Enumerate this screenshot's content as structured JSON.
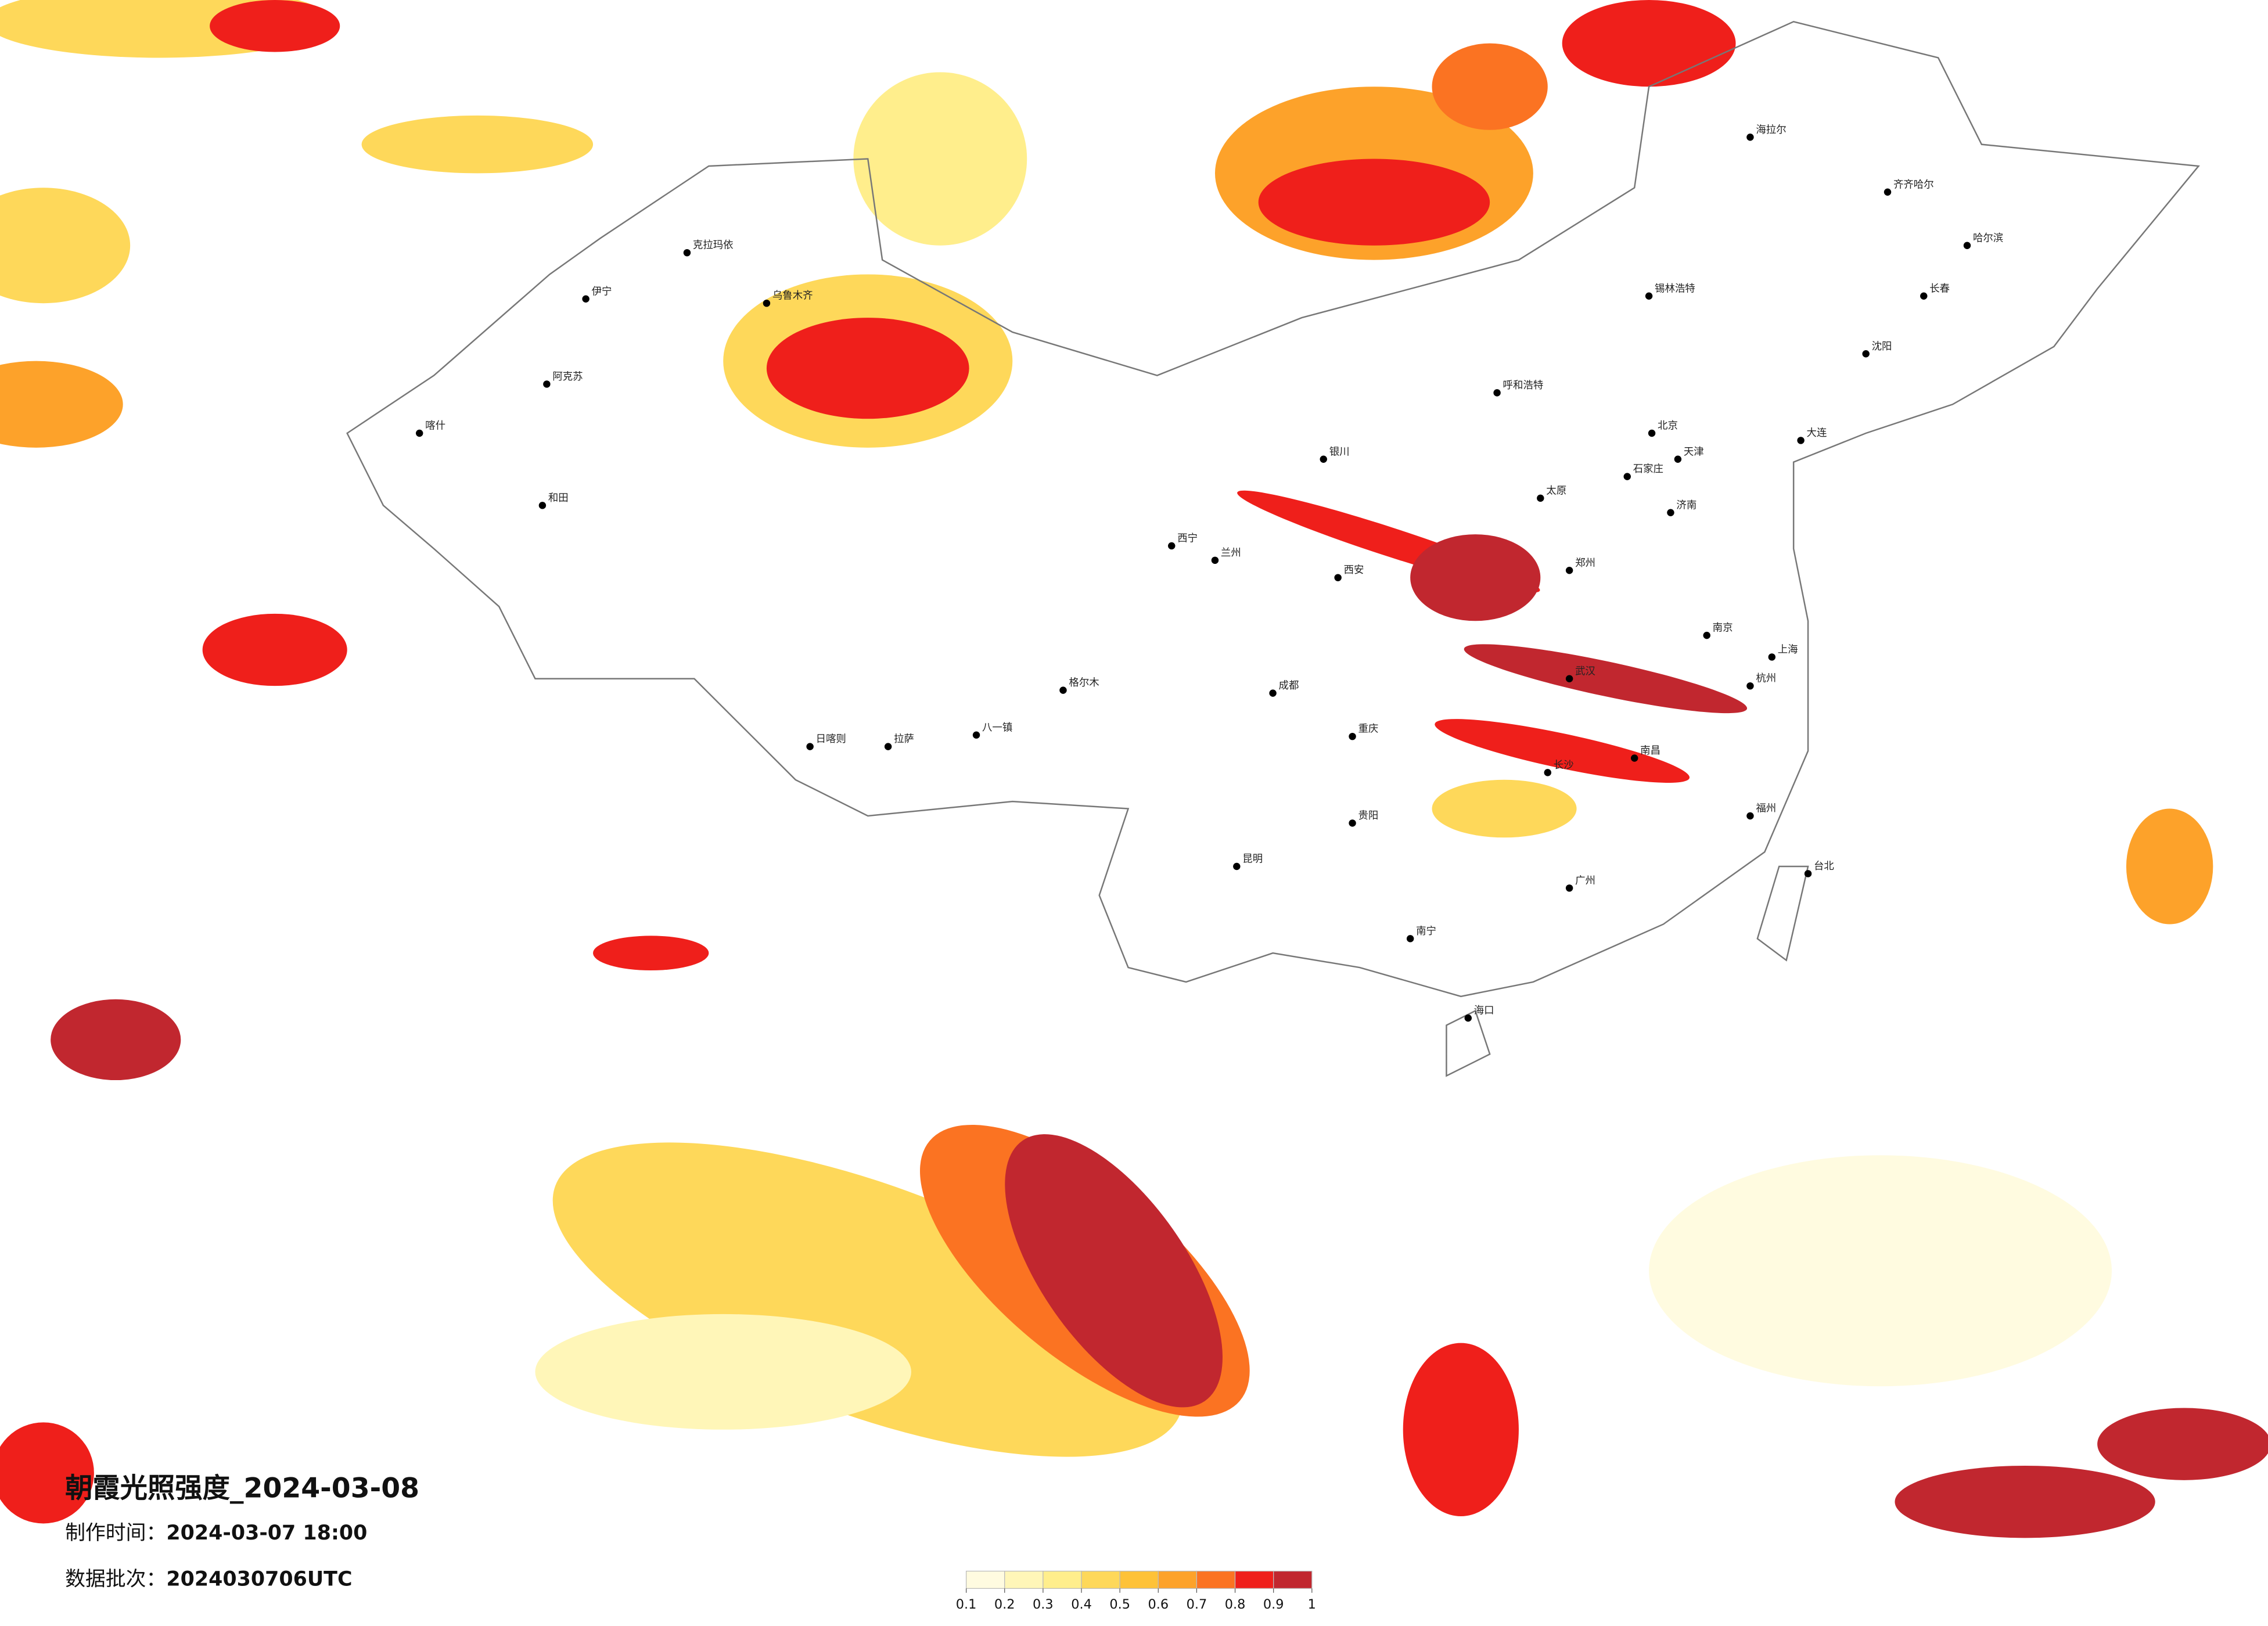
{
  "title": "朝霞光照强度_2024-03-08",
  "production_time": {
    "label": "制作时间：",
    "value": "2024-03-07 18:00"
  },
  "data_batch": {
    "label": "数据批次：",
    "value": "2024030706UTC"
  },
  "legend": {
    "ticks": [
      0.1,
      0.2,
      0.3,
      0.4,
      0.5,
      0.6,
      0.7,
      0.8,
      0.9,
      1
    ],
    "colors": [
      "#fffbe0",
      "#fff6b8",
      "#ffee8c",
      "#fed85a",
      "#fec238",
      "#fda22a",
      "#fb7322",
      "#ef1f1b",
      "#c1272f"
    ]
  },
  "cities": [
    "克拉玛依",
    "乌鲁木齐",
    "伊宁",
    "阿克苏",
    "喀什",
    "和田",
    "格尔木",
    "拉萨",
    "日喀则",
    "八一镇",
    "西宁",
    "兰州",
    "银川",
    "呼和浩特",
    "北京",
    "天津",
    "石家庄",
    "太原",
    "济南",
    "西安",
    "郑州",
    "武汉",
    "南京",
    "上海",
    "杭州",
    "成都",
    "重庆",
    "长沙",
    "南昌",
    "福州",
    "广州",
    "南宁",
    "昆明",
    "贵阳",
    "海口",
    "台北",
    "哈尔滨",
    "长春",
    "沈阳",
    "大连",
    "海拉尔",
    "齐齐哈尔",
    "锡林浩特"
  ]
}
